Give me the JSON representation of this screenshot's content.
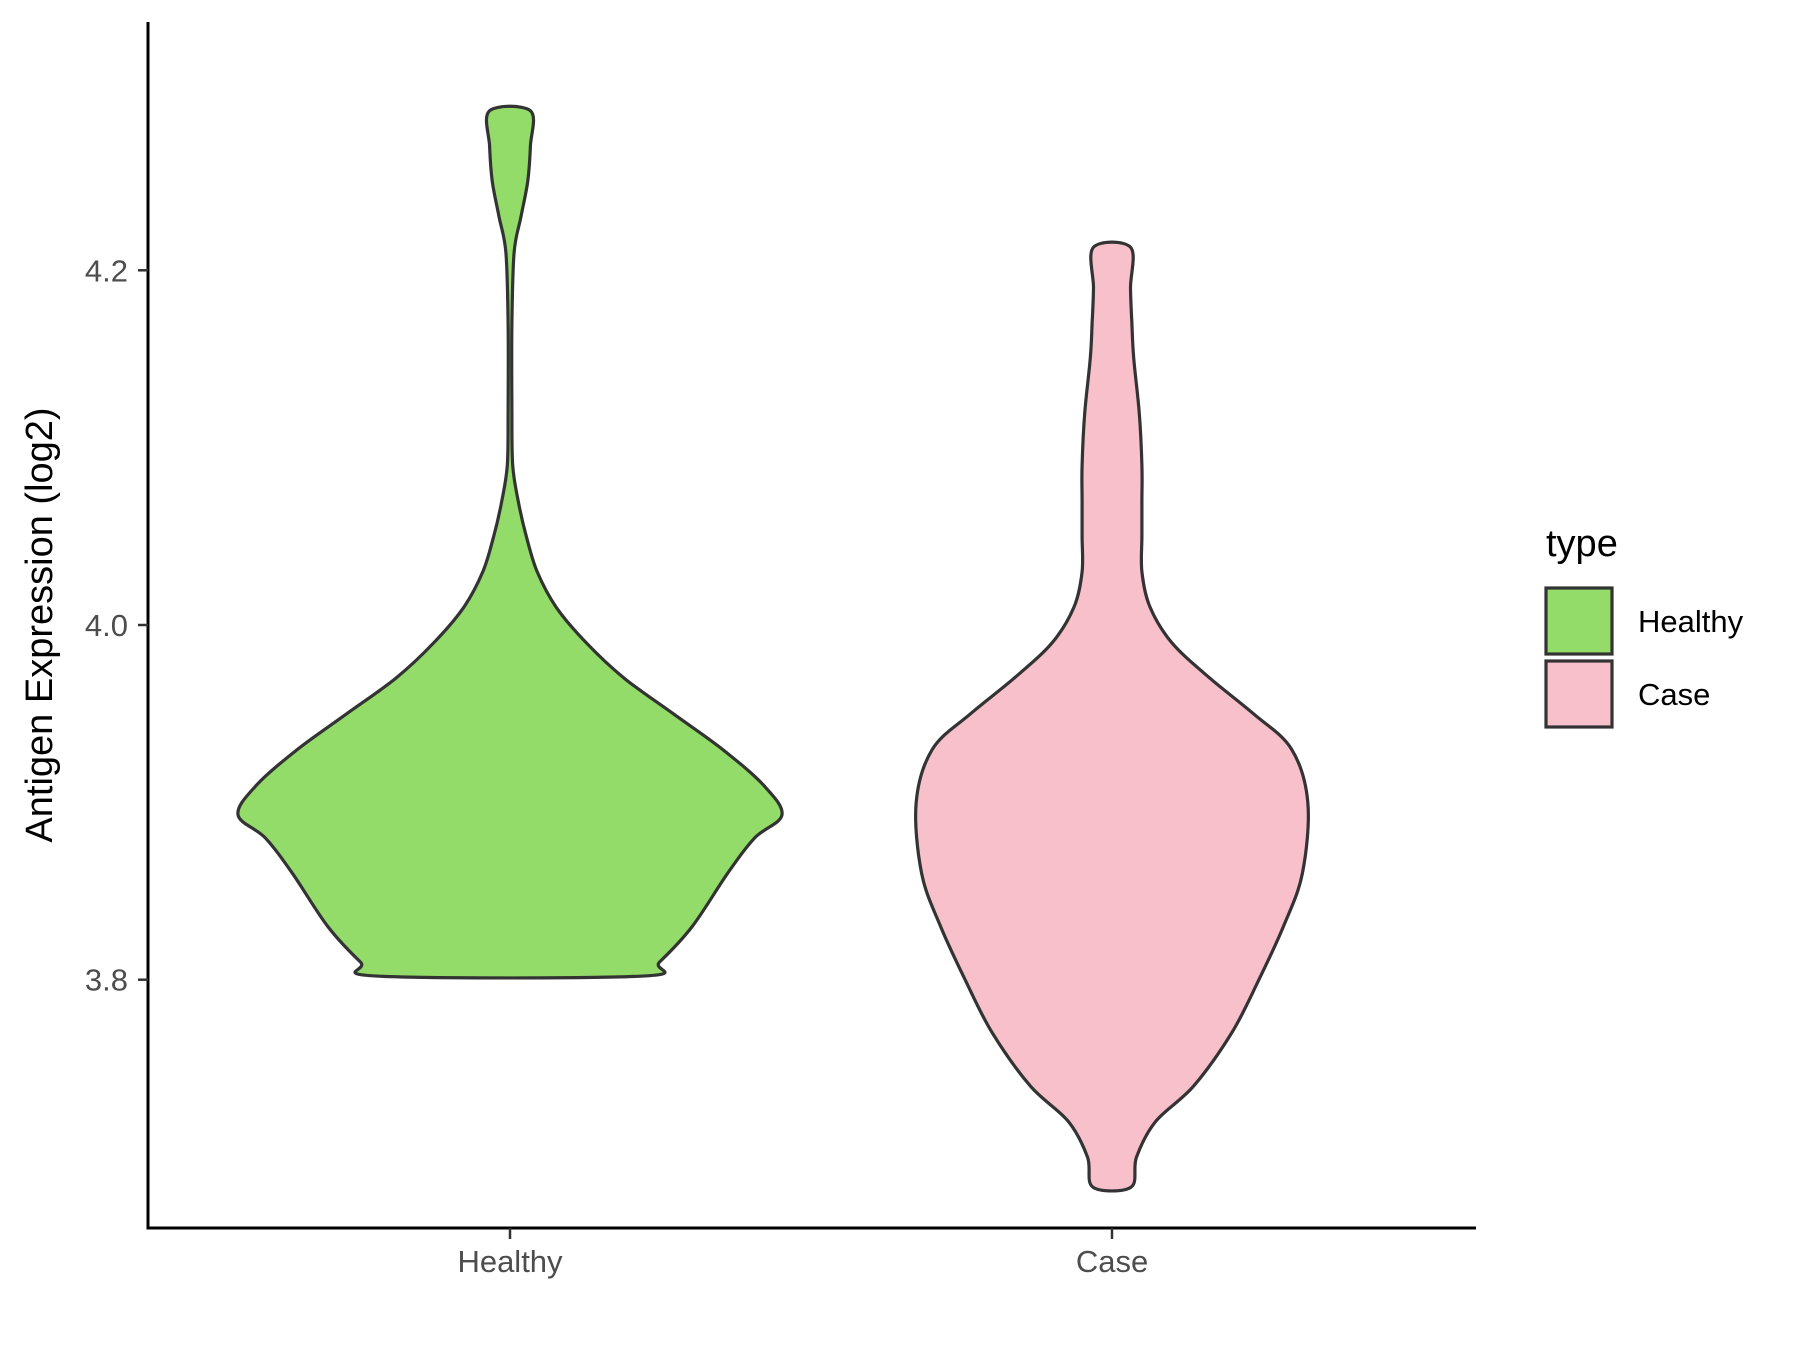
{
  "chart_data": {
    "type": "violin",
    "ylabel": "Antigen Expression (log2)",
    "xlabel": "",
    "categories": [
      "Healthy",
      "Case"
    ],
    "ylim": [
      3.66,
      4.34
    ],
    "yticks": [
      3.8,
      4.0,
      4.2
    ],
    "ytick_labels": [
      "3.8",
      "4.0",
      "4.2"
    ],
    "grid": false,
    "legend": {
      "title": "type",
      "position": "right",
      "entries": [
        "Healthy",
        "Case"
      ]
    },
    "series": [
      {
        "category": "Healthy",
        "color": "#93DC6A",
        "y_min": 3.802,
        "y_max": 4.29,
        "density_profile": [
          [
            3.802,
            0.48
          ],
          [
            3.81,
            0.55
          ],
          [
            3.83,
            0.67
          ],
          [
            3.86,
            0.8
          ],
          [
            3.88,
            0.9
          ],
          [
            3.893,
            1.0
          ],
          [
            3.91,
            0.93
          ],
          [
            3.93,
            0.78
          ],
          [
            3.95,
            0.6
          ],
          [
            3.97,
            0.42
          ],
          [
            3.99,
            0.28
          ],
          [
            4.01,
            0.17
          ],
          [
            4.03,
            0.1
          ],
          [
            4.05,
            0.06
          ],
          [
            4.07,
            0.03
          ],
          [
            4.09,
            0.01
          ],
          [
            4.12,
            0.007
          ],
          [
            4.17,
            0.007
          ],
          [
            4.21,
            0.015
          ],
          [
            4.23,
            0.04
          ],
          [
            4.25,
            0.065
          ],
          [
            4.27,
            0.075
          ],
          [
            4.29,
            0.075
          ]
        ]
      },
      {
        "category": "Case",
        "color": "#F7C0CB",
        "y_min": 3.683,
        "y_max": 4.213,
        "density_profile": [
          [
            3.683,
            0.07
          ],
          [
            3.7,
            0.09
          ],
          [
            3.72,
            0.16
          ],
          [
            3.74,
            0.3
          ],
          [
            3.77,
            0.44
          ],
          [
            3.8,
            0.54
          ],
          [
            3.83,
            0.63
          ],
          [
            3.86,
            0.7
          ],
          [
            3.9,
            0.72
          ],
          [
            3.93,
            0.66
          ],
          [
            3.95,
            0.52
          ],
          [
            3.97,
            0.36
          ],
          [
            3.99,
            0.22
          ],
          [
            4.01,
            0.14
          ],
          [
            4.03,
            0.11
          ],
          [
            4.05,
            0.11
          ],
          [
            4.07,
            0.11
          ],
          [
            4.09,
            0.11
          ],
          [
            4.12,
            0.1
          ],
          [
            4.15,
            0.08
          ],
          [
            4.17,
            0.073
          ],
          [
            4.19,
            0.068
          ],
          [
            4.213,
            0.068
          ]
        ]
      }
    ]
  }
}
